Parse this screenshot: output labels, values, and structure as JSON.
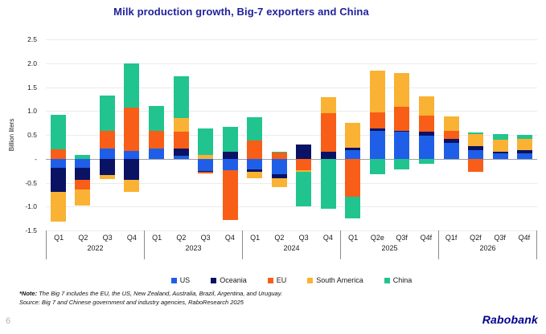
{
  "title": "Milk production growth, Big-7 exporters and China",
  "y_axis": {
    "label": "Billion liters",
    "ticks": [
      {
        "v": 2.5,
        "label": "2.5"
      },
      {
        "v": 2.0,
        "label": "2.0"
      },
      {
        "v": 1.5,
        "label": "1.5"
      },
      {
        "v": 1.0,
        "label": "1.0"
      },
      {
        "v": 0.5,
        "label": "0.5"
      },
      {
        "v": 0.0,
        "label": "-"
      },
      {
        "v": -0.5,
        "label": "-0.5"
      },
      {
        "v": -1.0,
        "label": "-1.0"
      },
      {
        "v": -1.5,
        "label": "-1.5"
      }
    ]
  },
  "chart_data": {
    "type": "bar",
    "stacked": true,
    "title": "Milk production growth, Big-7 exporters and China",
    "xlabel": "",
    "ylabel": "Billion liters",
    "ylim": [
      -1.5,
      2.5
    ],
    "grid": true,
    "legend_position": "bottom",
    "groups": [
      {
        "year": "2022",
        "quarters": [
          "Q1",
          "Q2",
          "Q3",
          "Q4"
        ]
      },
      {
        "year": "2023",
        "quarters": [
          "Q1",
          "Q2",
          "Q3",
          "Q4"
        ]
      },
      {
        "year": "2024",
        "quarters": [
          "Q1",
          "Q2",
          "Q3",
          "Q4"
        ]
      },
      {
        "year": "2025",
        "quarters": [
          "Q1",
          "Q2e",
          "Q3f",
          "Q4f"
        ]
      },
      {
        "year": "2026",
        "quarters": [
          "Q1f",
          "Q2f",
          "Q3f",
          "Q4f"
        ]
      }
    ],
    "categories": [
      "2022 Q1",
      "2022 Q2",
      "2022 Q3",
      "2022 Q4",
      "2023 Q1",
      "2023 Q2",
      "2023 Q3",
      "2023 Q4",
      "2024 Q1",
      "2024 Q2",
      "2024 Q3",
      "2024 Q4",
      "2025 Q1",
      "2025 Q2e",
      "2025 Q3f",
      "2025 Q4f",
      "2026 Q1f",
      "2026 Q2f",
      "2026 Q3f",
      "2026 Q4f"
    ],
    "series": [
      {
        "name": "US",
        "color": "#1F5FE8",
        "values": [
          -0.19,
          -0.19,
          0.21,
          0.17,
          0.22,
          0.06,
          -0.25,
          -0.24,
          -0.23,
          -0.33,
          0.0,
          0.0,
          0.18,
          0.58,
          0.57,
          0.49,
          0.33,
          0.18,
          0.12,
          0.11
        ]
      },
      {
        "name": "Oceania",
        "color": "#0A1264",
        "values": [
          -0.5,
          -0.25,
          -0.34,
          -0.44,
          0.0,
          0.16,
          -0.02,
          0.15,
          -0.04,
          -0.07,
          0.29,
          0.15,
          0.05,
          0.05,
          0.02,
          0.07,
          0.09,
          0.08,
          0.03,
          0.07
        ]
      },
      {
        "name": "EU",
        "color": "#F85E17",
        "values": [
          0.19,
          -0.2,
          0.37,
          0.9,
          0.37,
          0.35,
          -0.03,
          -1.05,
          0.38,
          0.13,
          -0.24,
          0.81,
          -0.79,
          0.34,
          0.49,
          0.35,
          0.16,
          -0.27,
          0.0,
          0.0
        ]
      },
      {
        "name": "South America",
        "color": "#F9B233",
        "values": [
          -0.62,
          -0.34,
          -0.09,
          -0.25,
          0.0,
          0.29,
          0.08,
          0.0,
          -0.14,
          -0.2,
          -0.04,
          0.33,
          0.53,
          0.88,
          0.72,
          0.39,
          0.3,
          0.26,
          0.25,
          0.24
        ]
      },
      {
        "name": "China",
        "color": "#21C48E",
        "values": [
          0.73,
          0.08,
          0.74,
          0.93,
          0.51,
          0.87,
          0.56,
          0.51,
          0.49,
          0.02,
          -0.72,
          -1.04,
          -0.46,
          -0.33,
          -0.22,
          -0.11,
          0.0,
          0.03,
          0.11,
          0.08
        ]
      }
    ]
  },
  "footnotes": {
    "note_label": "*Note:",
    "note": "The Big 7 includes the EU, the US, New Zealand, Australia, Brazil, Argentina, and Uruguay.",
    "source": "Source: Big 7 and Chinese government and industry agencies, RaboResearch 2025"
  },
  "branding": {
    "logo": "Rabobank",
    "page_number": "6"
  }
}
